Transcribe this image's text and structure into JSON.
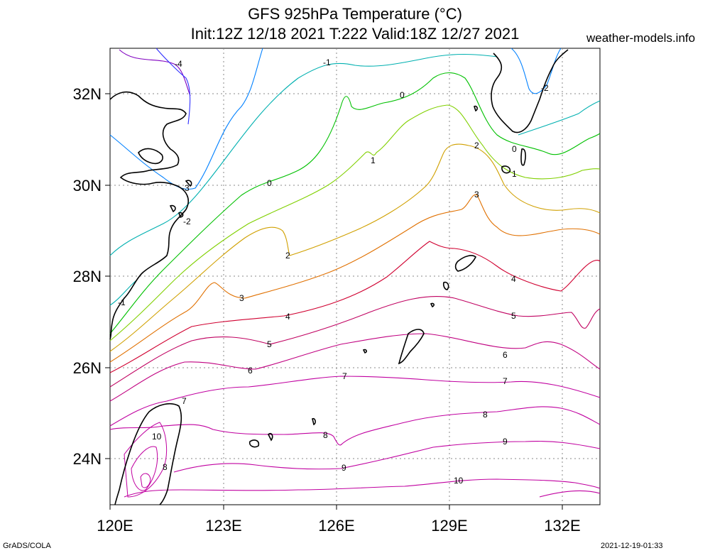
{
  "title_line1": "GFS 925hPa Temperature (°C)",
  "title_line2": "Init:12Z 12/18 2021 T:222 Valid:18Z 12/27 2021",
  "site": "weather-models.info",
  "footer_left": "GrADS/COLA",
  "footer_right": "2021-12-19-01:33",
  "lon_labels": [
    "120E",
    "123E",
    "126E",
    "129E",
    "132E"
  ],
  "lat_labels": [
    "32N",
    "30N",
    "28N",
    "26N",
    "24N"
  ],
  "map_extent": {
    "lon": [
      120,
      133
    ],
    "lat": [
      23,
      33
    ]
  },
  "contour_labels": [
    "-4",
    "-3",
    "-2",
    "-1",
    "0",
    "1",
    "2",
    "3",
    "4",
    "5",
    "6",
    "7",
    "8",
    "9",
    "10"
  ],
  "colors": {
    "c-4": "#8000c0",
    "c-3": "#3030ff",
    "c-2": "#0080ff",
    "c-1": "#00b0b0",
    "c0": "#00c000",
    "c1": "#80d000",
    "c2": "#d0a000",
    "c3": "#e07000",
    "c4": "#d00030",
    "c5": "#c00060",
    "c6": "#c00080",
    "c7": "#c000a0",
    "c8": "#c000a0",
    "c9": "#c000a0",
    "c10": "#c000a0"
  }
}
